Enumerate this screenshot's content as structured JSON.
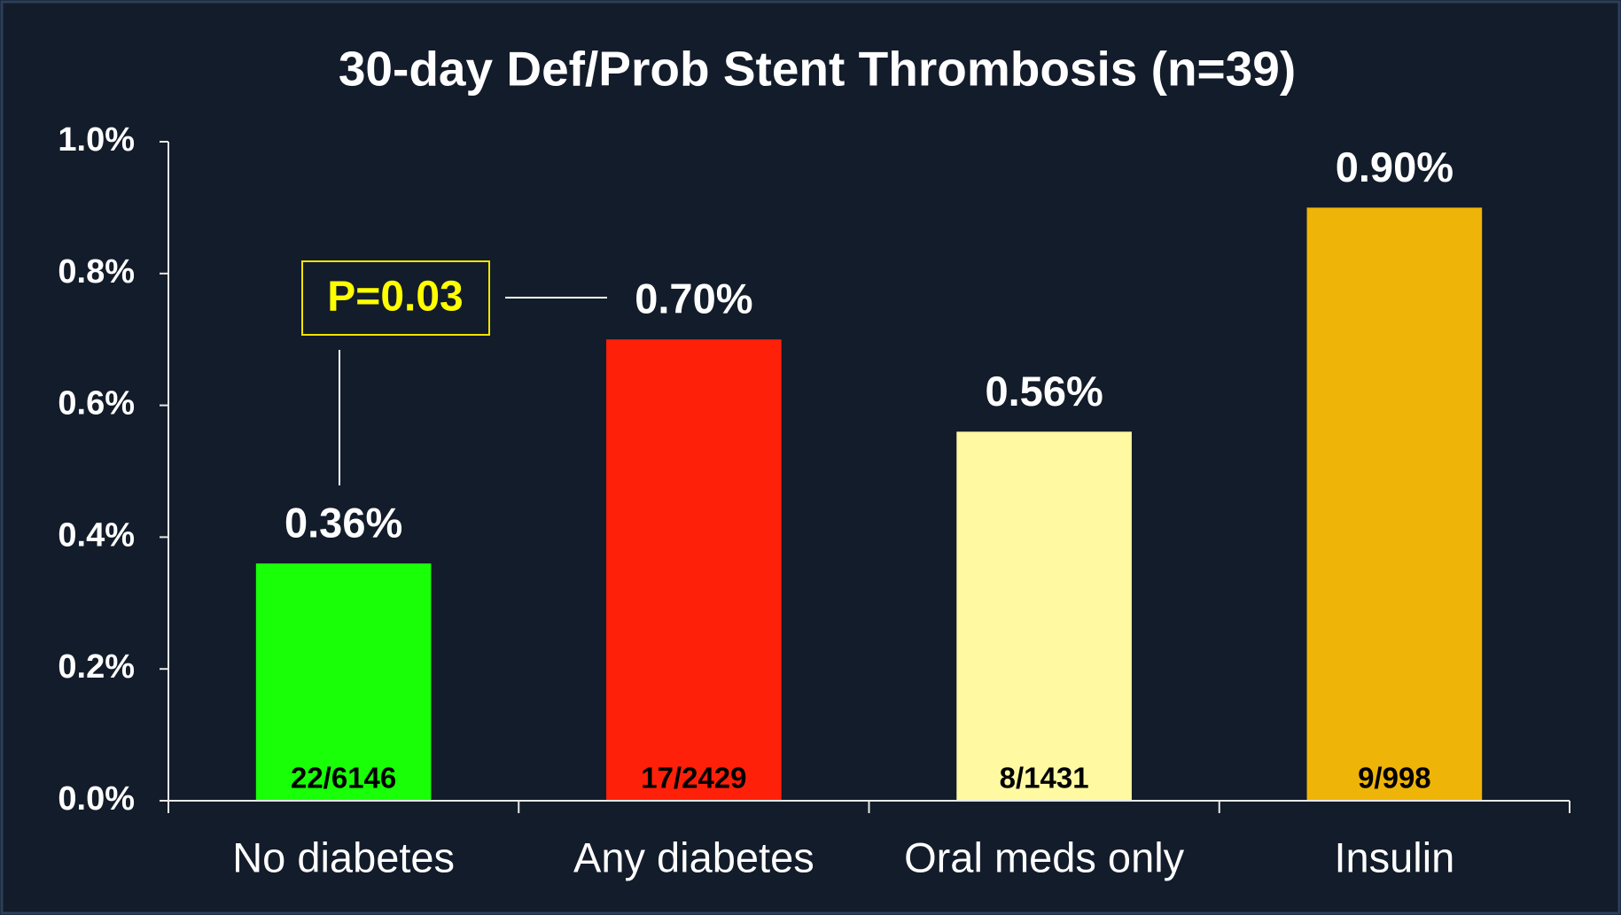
{
  "chart_data": {
    "type": "bar",
    "title": "30-day Def/Prob Stent Thrombosis (n=39)",
    "categories": [
      "No diabetes",
      "Any diabetes",
      "Oral meds only",
      "Insulin"
    ],
    "values": [
      0.36,
      0.7,
      0.56,
      0.9
    ],
    "value_labels": [
      "0.36%",
      "0.70%",
      "0.56%",
      "0.90%"
    ],
    "bar_annotations": [
      "22/6146",
      "17/2429",
      "8/1431",
      "9/998"
    ],
    "colors": [
      "#18ff08",
      "#ff200a",
      "#fff9a2",
      "#efb408"
    ],
    "annotation": "P=0.03",
    "ylim": [
      0,
      1.0
    ],
    "yticks": [
      {
        "value": 0,
        "label": "0.0%"
      },
      {
        "value": 0.2,
        "label": "0.2%"
      },
      {
        "value": 0.4,
        "label": "0.4%"
      },
      {
        "value": 0.6,
        "label": "0.6%"
      },
      {
        "value": 0.8,
        "label": "0.8%"
      },
      {
        "value": 1.0,
        "label": "1.0%"
      }
    ],
    "grid": false
  }
}
